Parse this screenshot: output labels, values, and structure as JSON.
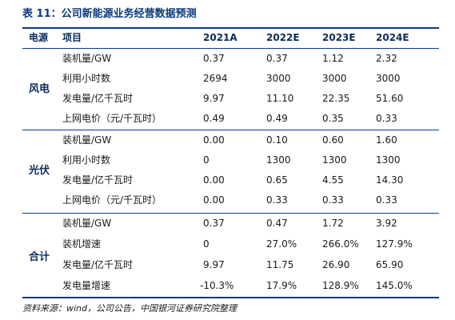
{
  "title": "表 11：公司新能源业务经营数据预测",
  "header": {
    "col_source": "电源",
    "col_item": "项目",
    "years": [
      "2021A",
      "2022E",
      "2023E",
      "2024E"
    ]
  },
  "groups": [
    {
      "name": "风电",
      "rows": [
        {
          "item": "装机量/GW",
          "values": [
            "0.37",
            "0.37",
            "1.12",
            "2.32"
          ]
        },
        {
          "item": "利用小时数",
          "values": [
            "2694",
            "3000",
            "3000",
            "3000"
          ]
        },
        {
          "item": "发电量/亿千瓦时",
          "values": [
            "9.97",
            "11.10",
            "22.35",
            "51.60"
          ]
        },
        {
          "item": "上网电价（元/千瓦时）",
          "values": [
            "0.49",
            "0.49",
            "0.35",
            "0.33"
          ]
        }
      ]
    },
    {
      "name": "光伏",
      "rows": [
        {
          "item": "装机量/GW",
          "values": [
            "0.00",
            "0.10",
            "0.60",
            "1.60"
          ]
        },
        {
          "item": "利用小时数",
          "values": [
            "0",
            "1300",
            "1300",
            "1300"
          ]
        },
        {
          "item": "发电量/亿千瓦时",
          "values": [
            "0.00",
            "0.65",
            "4.55",
            "14.30"
          ]
        },
        {
          "item": "上网电价（元/千瓦时）",
          "values": [
            "0.00",
            "0.33",
            "0.33",
            "0.33"
          ]
        }
      ]
    },
    {
      "name": "合计",
      "rows": [
        {
          "item": "装机量/GW",
          "values": [
            "0.37",
            "0.47",
            "1.72",
            "3.92"
          ]
        },
        {
          "item": "装机增速",
          "values": [
            "0",
            "27.0%",
            "266.0%",
            "127.9%"
          ]
        },
        {
          "item": "发电量/亿千瓦时",
          "values": [
            "9.97",
            "11.75",
            "26.90",
            "65.90"
          ]
        },
        {
          "item": "发电量增速",
          "values": [
            "-10.3%",
            "17.9%",
            "128.9%",
            "145.0%"
          ]
        }
      ]
    }
  ],
  "source": "资料来源：wind，公司公告，中国银河证券研究院整理"
}
